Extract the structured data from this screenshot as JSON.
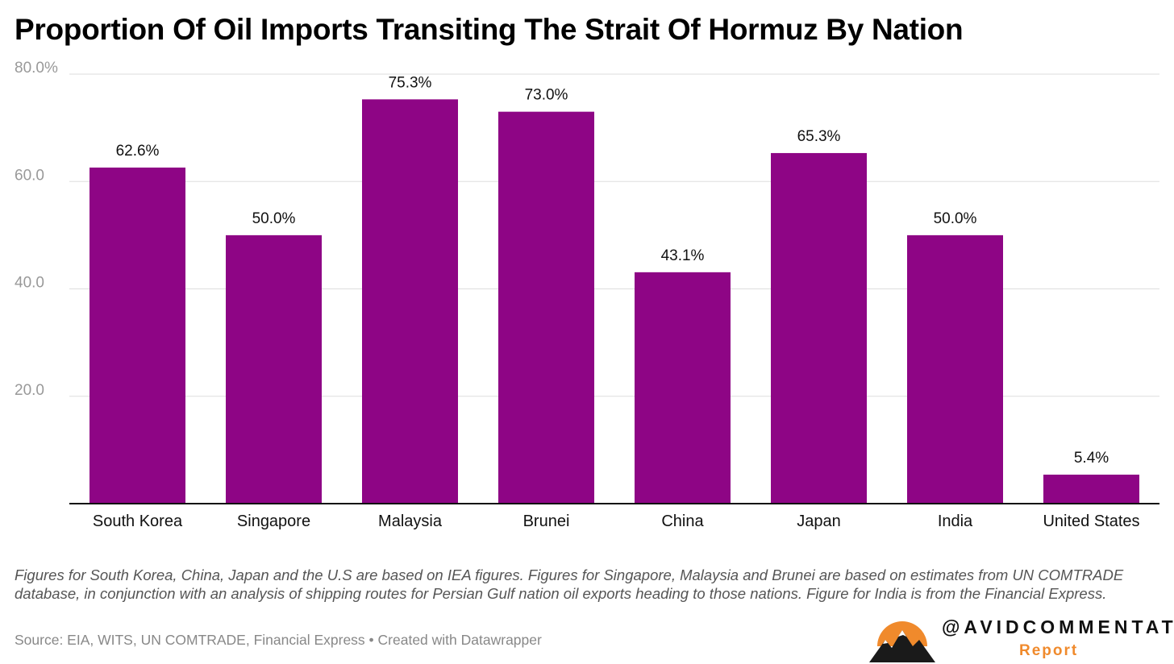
{
  "title": "Proportion Of Oil Imports Transiting The Strait Of Hormuz By Nation",
  "note": "Figures for South Korea, China, Japan and the U.S are based on IEA figures. Figures for Singapore, Malaysia and Brunei are based on estimates from UN COMTRADE database, in conjunction with an analysis of shipping routes for Persian Gulf nation oil exports heading to those nations. Figure for India is from the Financial Express.",
  "source": "Source: EIA, WITS, UN COMTRADE, Financial Express • Created with Datawrapper",
  "brand": {
    "handle": "@AVIDCOMMENTATOR",
    "sub": "Report",
    "logo_icon": "mountain-sun-logo"
  },
  "colors": {
    "bar": "#8e0585",
    "axis_text": "#999999",
    "label_text": "#111111",
    "grid": "#dddddd",
    "brand_orange": "#f08a2c"
  },
  "chart_data": {
    "type": "bar",
    "categories": [
      "South Korea",
      "Singapore",
      "Malaysia",
      "Brunei",
      "China",
      "Japan",
      "India",
      "United States"
    ],
    "values": [
      62.6,
      50.0,
      75.3,
      73.0,
      43.1,
      65.3,
      50.0,
      5.4
    ],
    "value_labels": [
      "62.6%",
      "50.0%",
      "75.3%",
      "73.0%",
      "43.1%",
      "65.3%",
      "50.0%",
      "5.4%"
    ],
    "yticks": [
      20,
      40,
      60,
      80
    ],
    "ytick_labels": [
      "20.0",
      "40.0",
      "60.0",
      "80.0%"
    ],
    "ylim": [
      0,
      80
    ],
    "grid": true,
    "legend": "none"
  }
}
